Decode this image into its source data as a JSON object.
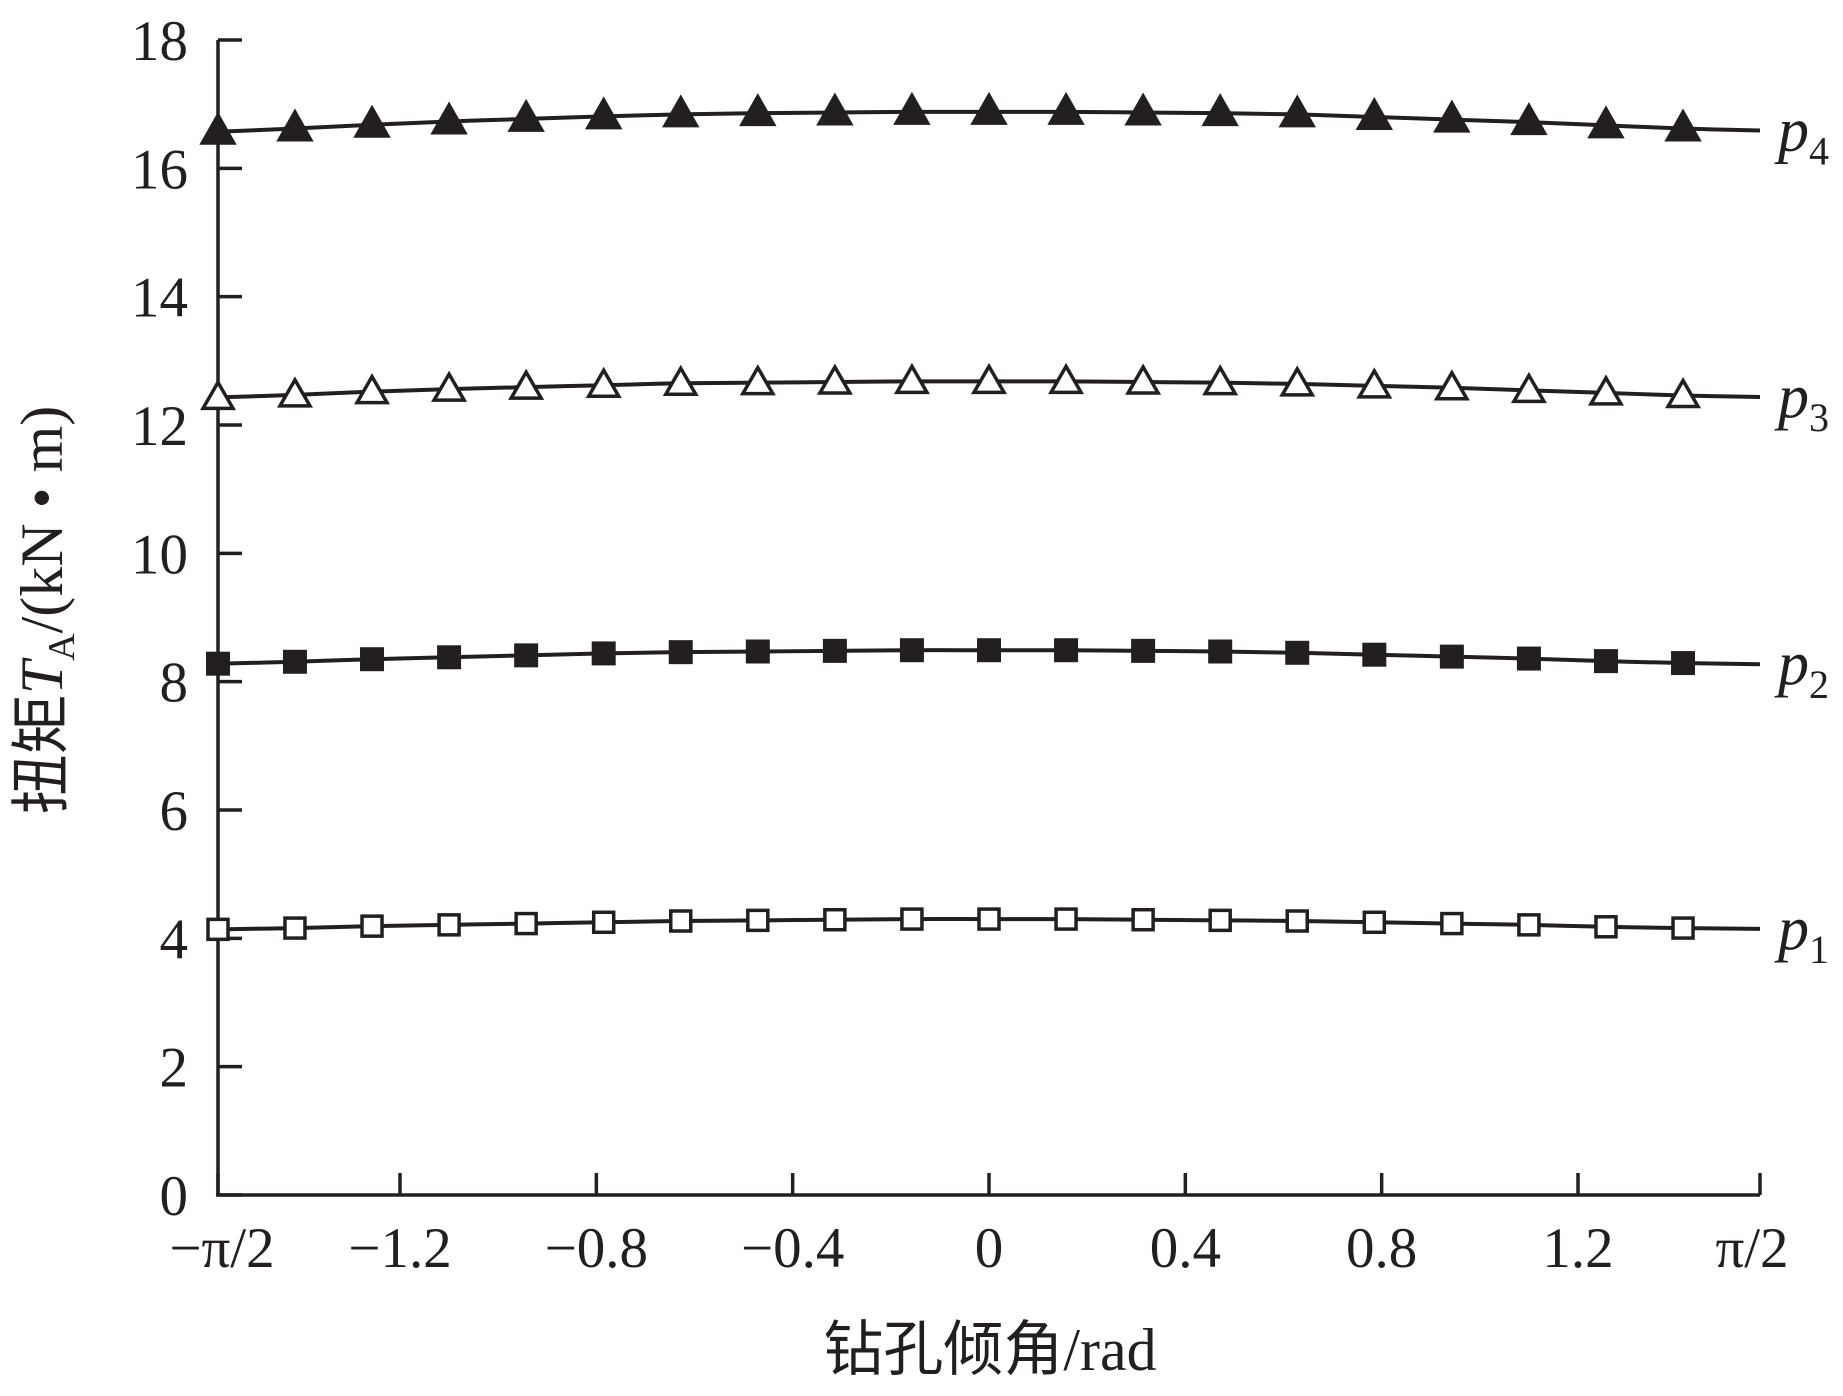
{
  "chart_data": {
    "type": "line",
    "xlabel": "钻孔倾角/rad",
    "ylabel": {
      "prefix": "扭矩",
      "symbol": "T",
      "subscript": "A",
      "unit": "/(kN • m)"
    },
    "xlim": [
      -1.5708,
      1.5708
    ],
    "ylim": [
      0,
      18
    ],
    "x_ticks": [
      {
        "value": -1.5708,
        "label": "−π/2"
      },
      {
        "value": -1.2,
        "label": "−1.2"
      },
      {
        "value": -0.8,
        "label": "−0.8"
      },
      {
        "value": -0.4,
        "label": "−0.4"
      },
      {
        "value": 0,
        "label": "0"
      },
      {
        "value": 0.4,
        "label": "0.4"
      },
      {
        "value": 0.8,
        "label": "0.8"
      },
      {
        "value": 1.2,
        "label": "1.2"
      },
      {
        "value": 1.5708,
        "label": "π/2"
      }
    ],
    "y_ticks": [
      {
        "value": 0,
        "label": "0"
      },
      {
        "value": 2,
        "label": "2"
      },
      {
        "value": 4,
        "label": "4"
      },
      {
        "value": 6,
        "label": "6"
      },
      {
        "value": 8,
        "label": "8"
      },
      {
        "value": 10,
        "label": "10"
      },
      {
        "value": 12,
        "label": "12"
      },
      {
        "value": 14,
        "label": "14"
      },
      {
        "value": 16,
        "label": "16"
      },
      {
        "value": 18,
        "label": "18"
      }
    ],
    "grid": false,
    "x": [
      -1.5708,
      -1.414,
      -1.257,
      -1.1,
      -0.943,
      -0.785,
      -0.628,
      -0.471,
      -0.314,
      -0.157,
      0.0,
      0.157,
      0.314,
      0.471,
      0.628,
      0.785,
      0.943,
      1.1,
      1.257,
      1.414
    ],
    "series": [
      {
        "name": "p",
        "name_sub": "1",
        "marker": "square-open",
        "values": [
          4.14,
          4.16,
          4.19,
          4.21,
          4.23,
          4.25,
          4.27,
          4.28,
          4.29,
          4.3,
          4.3,
          4.3,
          4.29,
          4.28,
          4.27,
          4.25,
          4.23,
          4.21,
          4.18,
          4.16
        ]
      },
      {
        "name": "p",
        "name_sub": "2",
        "marker": "square-filled",
        "values": [
          8.28,
          8.31,
          8.35,
          8.38,
          8.41,
          8.44,
          8.46,
          8.47,
          8.48,
          8.49,
          8.49,
          8.49,
          8.48,
          8.47,
          8.45,
          8.42,
          8.39,
          8.36,
          8.32,
          8.29
        ]
      },
      {
        "name": "p",
        "name_sub": "3",
        "marker": "triangle-open",
        "values": [
          12.43,
          12.47,
          12.52,
          12.56,
          12.59,
          12.62,
          12.65,
          12.66,
          12.67,
          12.68,
          12.68,
          12.68,
          12.67,
          12.66,
          12.64,
          12.61,
          12.58,
          12.54,
          12.5,
          12.46
        ]
      },
      {
        "name": "p",
        "name_sub": "4",
        "marker": "triangle-filled",
        "values": [
          16.57,
          16.62,
          16.68,
          16.73,
          16.77,
          16.81,
          16.84,
          16.86,
          16.87,
          16.88,
          16.88,
          16.88,
          16.87,
          16.86,
          16.84,
          16.8,
          16.76,
          16.72,
          16.67,
          16.62
        ]
      }
    ]
  }
}
